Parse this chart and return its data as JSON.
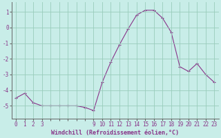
{
  "hours": [
    0,
    1,
    2,
    3,
    4,
    5,
    6,
    7,
    8,
    9,
    10,
    11,
    12,
    13,
    14,
    15,
    16,
    17,
    18,
    19,
    20,
    21,
    22,
    23
  ],
  "values": [
    -4.5,
    -4.2,
    -4.8,
    -5.0,
    -5.0,
    -5.0,
    -5.0,
    -5.0,
    -5.1,
    -5.3,
    -3.5,
    -2.2,
    -1.1,
    -0.1,
    0.8,
    1.1,
    1.1,
    0.6,
    -0.3,
    -2.5,
    -2.8,
    -2.3,
    -3.0,
    -3.5
  ],
  "line_color": "#883388",
  "marker": "+",
  "bg_color": "#c8ede8",
  "grid_color": "#99ccbb",
  "xlabel": "Windchill (Refroidissement éolien,°C)",
  "xlim": [
    -0.5,
    23.5
  ],
  "ylim": [
    -5.8,
    1.6
  ],
  "yticks": [
    1,
    0,
    -1,
    -2,
    -3,
    -4,
    -5
  ],
  "xtick_labels": [
    "0",
    "1",
    "2",
    "3",
    "",
    "",
    "",
    "",
    "",
    "9",
    "10",
    "11",
    "12",
    "13",
    "14",
    "15",
    "16",
    "17",
    "18",
    "19",
    "20",
    "21",
    "22",
    "23"
  ],
  "xtick_positions": [
    0,
    1,
    2,
    3,
    4,
    5,
    6,
    7,
    8,
    9,
    10,
    11,
    12,
    13,
    14,
    15,
    16,
    17,
    18,
    19,
    20,
    21,
    22,
    23
  ],
  "title_color": "#883388",
  "axis_color": "#666666",
  "label_fontsize": 5.5,
  "xlabel_fontsize": 6.0
}
